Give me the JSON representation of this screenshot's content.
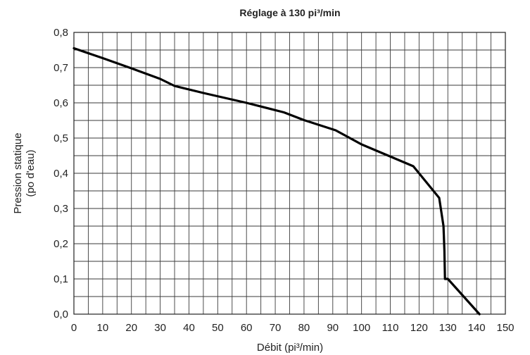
{
  "chart_data": {
    "type": "line",
    "title": "Réglage à 130 pi³/min",
    "xlabel": "Débit (pi³/min)",
    "ylabel_line1": "Pression statique",
    "ylabel_line2": "(po d'eau)",
    "xlim": [
      0,
      150
    ],
    "ylim": [
      0,
      0.8
    ],
    "x_ticks": [
      0,
      10,
      20,
      30,
      40,
      50,
      60,
      70,
      80,
      90,
      100,
      110,
      120,
      130,
      140,
      150
    ],
    "y_ticks": [
      0.0,
      0.1,
      0.2,
      0.3,
      0.4,
      0.5,
      0.6,
      0.7,
      0.8
    ],
    "x_tick_labels": [
      "0",
      "10",
      "20",
      "30",
      "40",
      "50",
      "60",
      "70",
      "80",
      "90",
      "100",
      "110",
      "120",
      "130",
      "140",
      "150"
    ],
    "y_tick_labels": [
      "0,0",
      "0,1",
      "0,2",
      "0,3",
      "0,4",
      "0,5",
      "0,6",
      "0,7",
      "0,8"
    ],
    "x_minor_step": 5,
    "y_minor_step": 0.05,
    "grid": true,
    "series": [
      {
        "x": [
          0,
          10,
          20,
          30,
          35,
          45,
          60,
          73,
          80,
          91,
          100,
          118,
          127,
          128.5,
          128.8,
          129,
          130,
          141
        ],
        "y": [
          0.755,
          0.727,
          0.698,
          0.668,
          0.648,
          0.628,
          0.6,
          0.573,
          0.551,
          0.522,
          0.482,
          0.42,
          0.33,
          0.25,
          0.18,
          0.1,
          0.1,
          0.0
        ]
      }
    ]
  }
}
